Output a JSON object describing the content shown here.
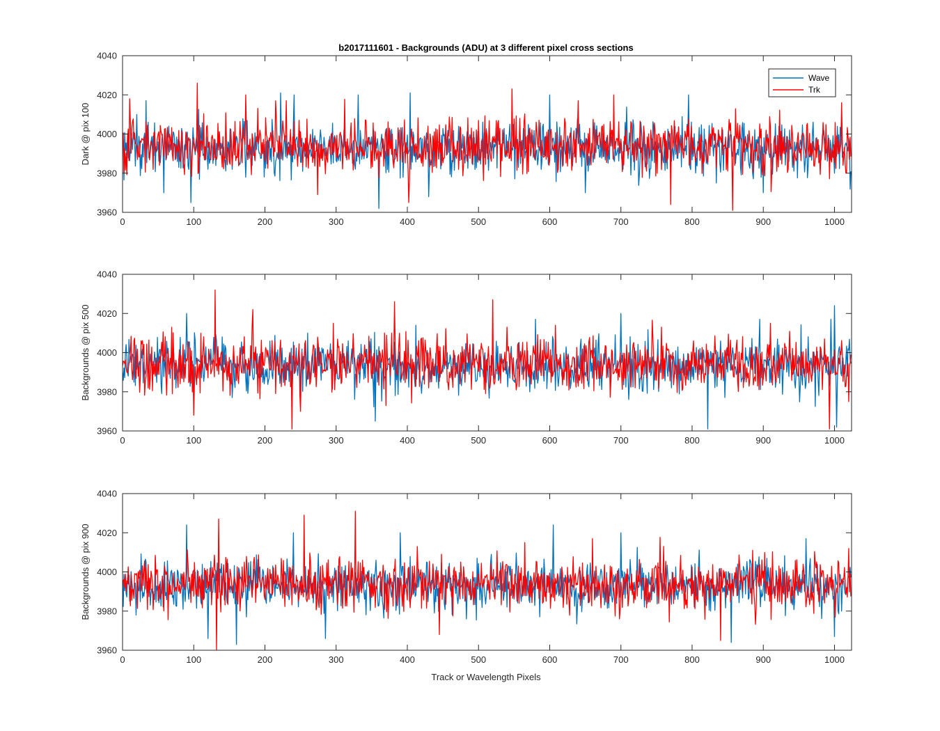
{
  "chart_data": {
    "type": "line",
    "title": "b2017111601 - Backgrounds (ADU) at 3 different pixel cross sections",
    "xlabel": "Track or Wavelength Pixels",
    "xlim": [
      0,
      1024
    ],
    "x_ticks": [
      0,
      100,
      200,
      300,
      400,
      500,
      600,
      700,
      800,
      900,
      1000
    ],
    "legend": {
      "placement": "top-right",
      "entries": [
        "Wave",
        "Trk"
      ]
    },
    "colors": {
      "Wave": "#0072BD",
      "Trk": "#FF0000"
    },
    "x_step": 1,
    "n_points": 1024,
    "panels": [
      {
        "ylabel": "Dark @ pix 100",
        "ylim": [
          3960,
          4040
        ],
        "y_ticks": [
          3960,
          3980,
          4000,
          4020,
          4040
        ],
        "series": [
          {
            "name": "Wave",
            "mean": 3993,
            "spread": 6.5,
            "peaks": [
              [
                33,
                4017
              ],
              [
                58,
                3970
              ],
              [
                96,
                3965
              ],
              [
                222,
                4021
              ],
              [
                241,
                4020
              ],
              [
                331,
                4020
              ],
              [
                360,
                3962
              ],
              [
                404,
                4021
              ],
              [
                430,
                3968
              ],
              [
                600,
                4020
              ],
              [
                650,
                3970
              ],
              [
                795,
                4020
              ],
              [
                834,
                3975
              ],
              [
                900,
                3970
              ],
              [
                1000,
                3980
              ]
            ]
          },
          {
            "name": "Trk",
            "mean": 3994,
            "spread": 6.8,
            "peaks": [
              [
                10,
                4018
              ],
              [
                105,
                4026
              ],
              [
                173,
                4020
              ],
              [
                230,
                4017
              ],
              [
                402,
                3965
              ],
              [
                547,
                4023
              ],
              [
                640,
                4017
              ],
              [
                690,
                4020
              ],
              [
                770,
                3964
              ],
              [
                857,
                3961
              ],
              [
                1010,
                4016
              ],
              [
                1016,
                3980
              ]
            ]
          }
        ]
      },
      {
        "ylabel": "Backgrounds @ pix 500",
        "ylim": [
          3960,
          4040
        ],
        "y_ticks": [
          3960,
          3980,
          4000,
          4020,
          4040
        ],
        "series": [
          {
            "name": "Wave",
            "mean": 3993,
            "spread": 6.5,
            "peaks": [
              [
                90,
                4020
              ],
              [
                260,
                4010
              ],
              [
                355,
                3965
              ],
              [
                412,
                4014
              ],
              [
                580,
                4017
              ],
              [
                700,
                4020
              ],
              [
                822,
                3961
              ],
              [
                895,
                4017
              ],
              [
                995,
                4017
              ],
              [
                1000,
                4024
              ],
              [
                1003,
                3962
              ]
            ]
          },
          {
            "name": "Trk",
            "mean": 3994,
            "spread": 6.8,
            "peaks": [
              [
                100,
                3968
              ],
              [
                130,
                4032
              ],
              [
                183,
                4022
              ],
              [
                238,
                3961
              ],
              [
                250,
                3970
              ],
              [
                296,
                4015
              ],
              [
                382,
                4026
              ],
              [
                520,
                4027
              ],
              [
                540,
                4013
              ],
              [
                608,
                4014
              ],
              [
                757,
                4013
              ],
              [
                910,
                4015
              ],
              [
                993,
                3961
              ],
              [
                1020,
                3975
              ]
            ]
          }
        ]
      },
      {
        "ylabel": "Backgrounds @ pix 900",
        "ylim": [
          3960,
          4040
        ],
        "y_ticks": [
          3960,
          3980,
          4000,
          4020,
          4040
        ],
        "series": [
          {
            "name": "Wave",
            "mean": 3993,
            "spread": 6.5,
            "peaks": [
              [
                90,
                4024
              ],
              [
                120,
                3966
              ],
              [
                160,
                3963
              ],
              [
                240,
                4020
              ],
              [
                285,
                3966
              ],
              [
                390,
                4020
              ],
              [
                605,
                4024
              ],
              [
                700,
                4020
              ],
              [
                855,
                3964
              ],
              [
                960,
                4017
              ],
              [
                1000,
                3967
              ]
            ]
          },
          {
            "name": "Trk",
            "mean": 3994,
            "spread": 6.8,
            "peaks": [
              [
                135,
                4027
              ],
              [
                132,
                3960
              ],
              [
                255,
                4029
              ],
              [
                327,
                4031
              ],
              [
                445,
                3968
              ],
              [
                565,
                4015
              ],
              [
                660,
                4017
              ],
              [
                760,
                4013
              ],
              [
                840,
                3965
              ],
              [
                1020,
                4012
              ]
            ]
          }
        ]
      }
    ]
  }
}
